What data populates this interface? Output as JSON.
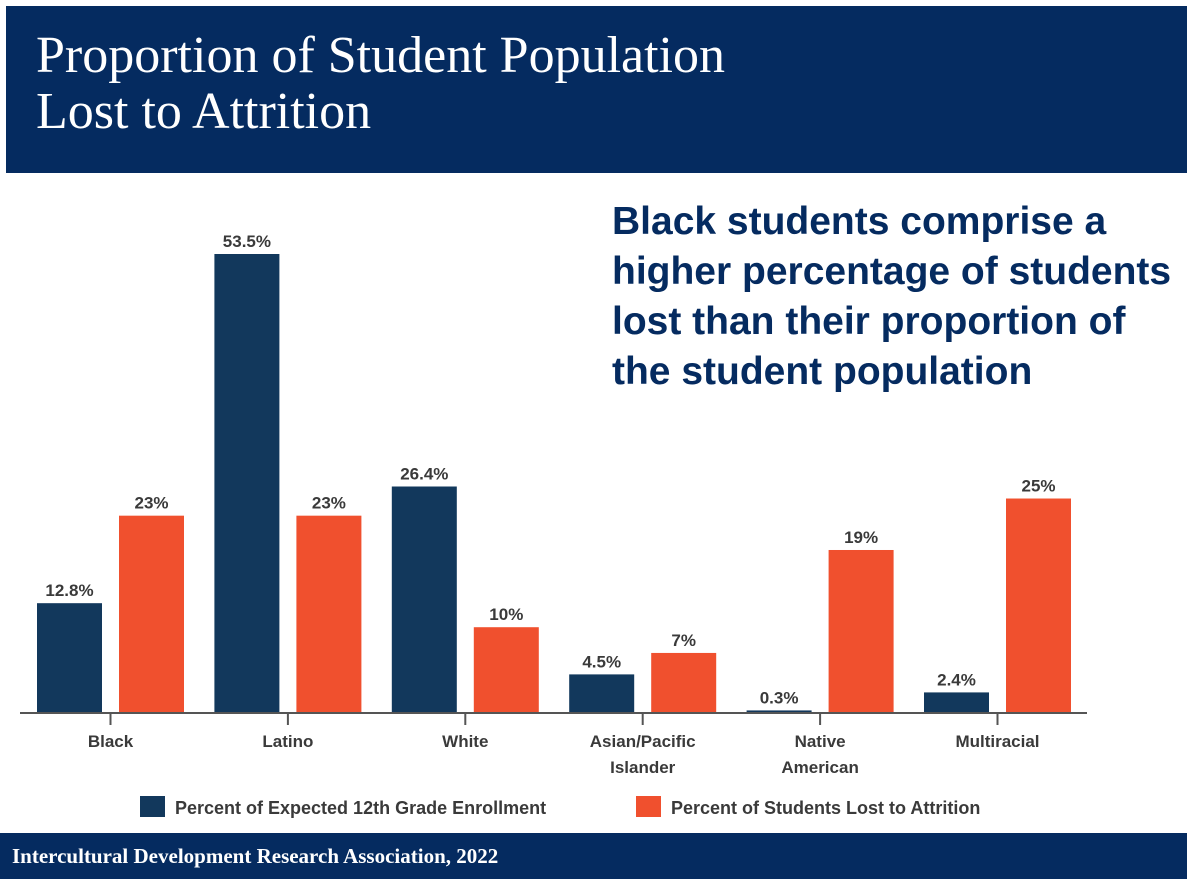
{
  "header": {
    "title_line1": "Proportion of Student Population",
    "title_line2": "Lost to Attrition"
  },
  "callout": "Black students comprise a higher percentage of students lost than their proportion of the student population",
  "footer": {
    "source": "Intercultural Development Research Association, 2022"
  },
  "colors": {
    "navy": "#052b60",
    "enrollment": "#12385c",
    "attrition": "#f0502e"
  },
  "chart_data": {
    "type": "bar",
    "title": "Proportion of Student Population Lost to Attrition",
    "categories": [
      [
        "Black"
      ],
      [
        "Latino"
      ],
      [
        "White"
      ],
      [
        "Asian/Pacific",
        "Islander"
      ],
      [
        "Native",
        "American"
      ],
      [
        "Multiracial"
      ]
    ],
    "series": [
      {
        "name": "Percent of Expected 12th Grade Enrollment",
        "color": "#12385c",
        "values": [
          12.8,
          53.5,
          26.4,
          4.5,
          0.3,
          2.4
        ],
        "labels": [
          "12.8%",
          "53.5%",
          "26.4%",
          "4.5%",
          "0.3%",
          "2.4%"
        ]
      },
      {
        "name": "Percent of Students Lost to Attrition",
        "color": "#f0502e",
        "values": [
          23,
          23,
          10,
          7,
          19,
          25
        ],
        "labels": [
          "23%",
          "23%",
          "10%",
          "7%",
          "19%",
          "25%"
        ]
      }
    ],
    "ylim": [
      0,
      53.5
    ],
    "grid": false,
    "legend_position": "bottom"
  }
}
